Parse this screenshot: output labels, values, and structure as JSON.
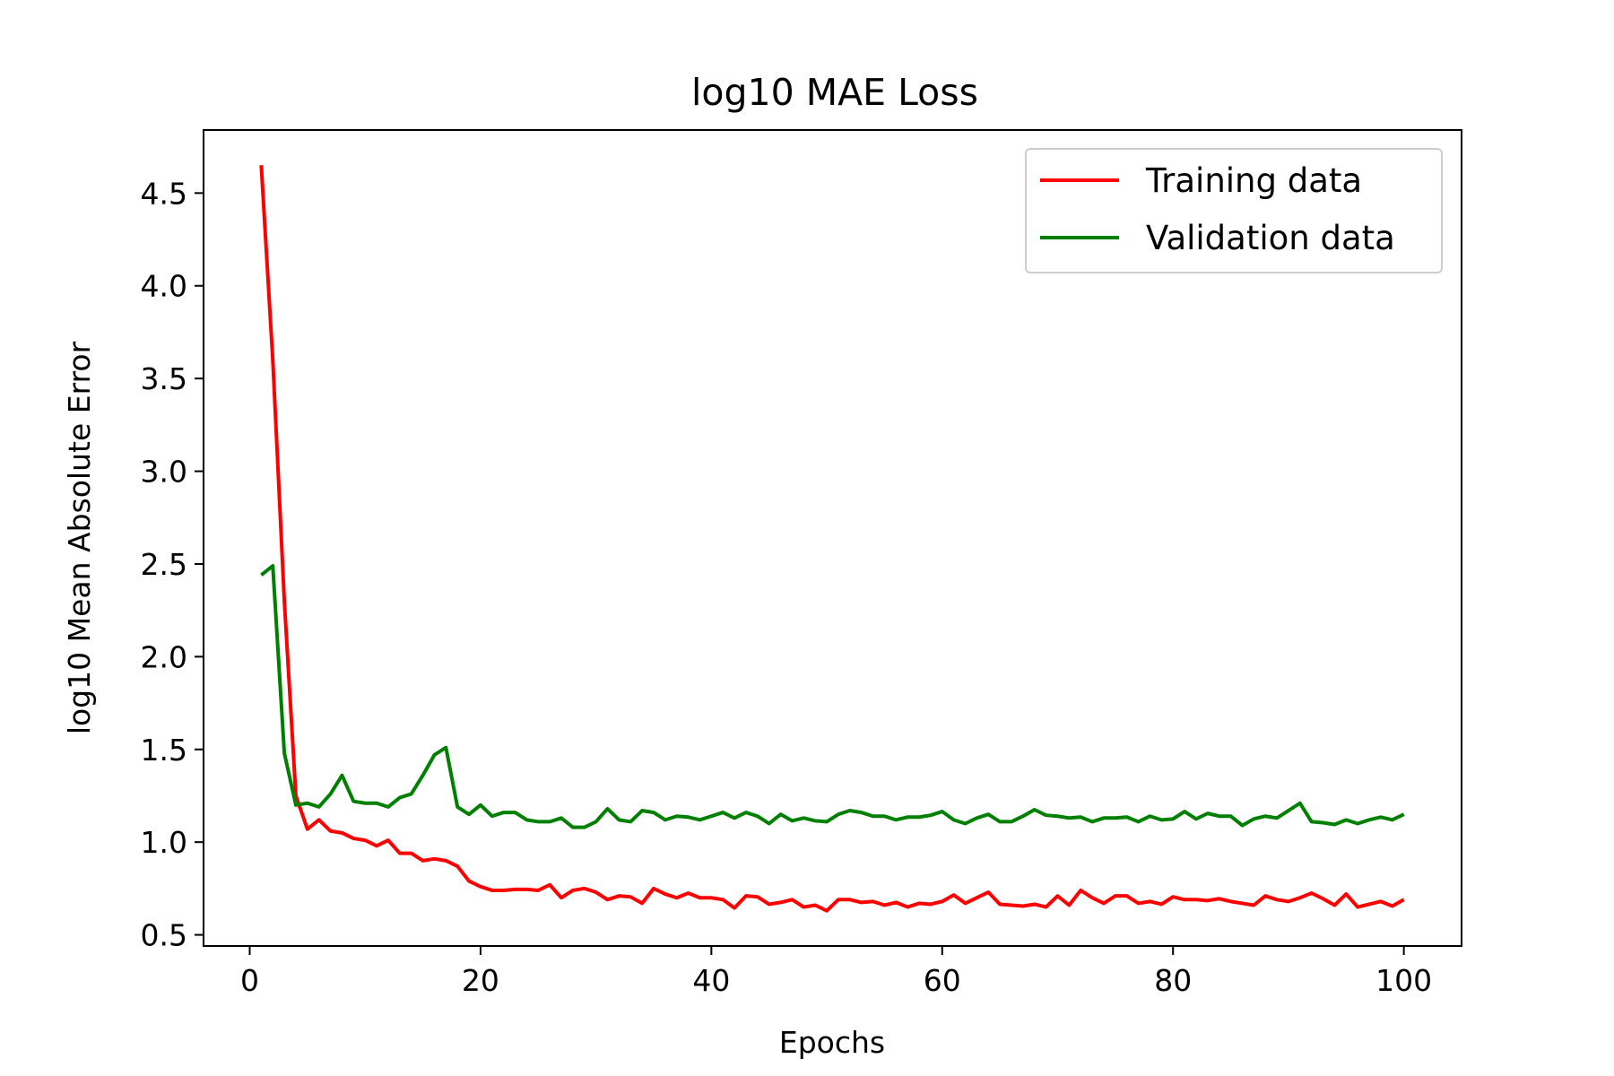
{
  "chart_data": {
    "type": "line",
    "title": "log10 MAE Loss",
    "xlabel": "Epochs",
    "ylabel": "log10 Mean Absolute Error",
    "xlim": [
      -4,
      105
    ],
    "ylim": [
      0.44,
      4.84
    ],
    "xticks": [
      0,
      20,
      40,
      60,
      80,
      100
    ],
    "xtick_labels": [
      "0",
      "20",
      "40",
      "60",
      "80",
      "100"
    ],
    "yticks": [
      0.5,
      1.0,
      1.5,
      2.0,
      2.5,
      3.0,
      3.5,
      4.0,
      4.5
    ],
    "ytick_labels": [
      "0.5",
      "1.0",
      "1.5",
      "2.0",
      "2.5",
      "3.0",
      "3.5",
      "4.0",
      "4.5"
    ],
    "grid": false,
    "legend_position": "top-right",
    "x": [
      1,
      2,
      3,
      4,
      5,
      6,
      7,
      8,
      9,
      10,
      11,
      12,
      13,
      14,
      15,
      16,
      17,
      18,
      19,
      20,
      21,
      22,
      23,
      24,
      25,
      26,
      27,
      28,
      29,
      30,
      31,
      32,
      33,
      34,
      35,
      36,
      37,
      38,
      39,
      40,
      41,
      42,
      43,
      44,
      45,
      46,
      47,
      48,
      49,
      50,
      51,
      52,
      53,
      54,
      55,
      56,
      57,
      58,
      59,
      60,
      61,
      62,
      63,
      64,
      65,
      66,
      67,
      68,
      69,
      70,
      71,
      72,
      73,
      74,
      75,
      76,
      77,
      78,
      79,
      80,
      81,
      82,
      83,
      84,
      85,
      86,
      87,
      88,
      89,
      90,
      91,
      92,
      93,
      94,
      95,
      96,
      97,
      98,
      99,
      100
    ],
    "series": [
      {
        "name": "Training data",
        "color": "#ff0000",
        "values": [
          4.65,
          3.6,
          2.3,
          1.25,
          1.07,
          1.12,
          1.06,
          1.05,
          1.02,
          1.01,
          0.98,
          1.01,
          0.94,
          0.94,
          0.9,
          0.91,
          0.9,
          0.87,
          0.79,
          0.76,
          0.74,
          0.74,
          0.745,
          0.745,
          0.74,
          0.77,
          0.7,
          0.74,
          0.75,
          0.73,
          0.69,
          0.71,
          0.705,
          0.67,
          0.75,
          0.72,
          0.7,
          0.725,
          0.7,
          0.7,
          0.69,
          0.645,
          0.71,
          0.705,
          0.665,
          0.675,
          0.69,
          0.65,
          0.66,
          0.63,
          0.69,
          0.69,
          0.675,
          0.68,
          0.66,
          0.675,
          0.65,
          0.67,
          0.665,
          0.68,
          0.715,
          0.67,
          0.7,
          0.73,
          0.665,
          0.66,
          0.655,
          0.665,
          0.65,
          0.71,
          0.66,
          0.74,
          0.7,
          0.67,
          0.71,
          0.71,
          0.67,
          0.68,
          0.665,
          0.705,
          0.69,
          0.69,
          0.685,
          0.695,
          0.68,
          0.67,
          0.66,
          0.71,
          0.69,
          0.68,
          0.7,
          0.725,
          0.695,
          0.66,
          0.72,
          0.65,
          0.665,
          0.68,
          0.655,
          0.69
        ]
      },
      {
        "name": "Validation data",
        "color": "#008000",
        "values": [
          2.44,
          2.49,
          1.48,
          1.2,
          1.21,
          1.19,
          1.26,
          1.36,
          1.22,
          1.21,
          1.21,
          1.19,
          1.24,
          1.26,
          1.36,
          1.47,
          1.51,
          1.19,
          1.15,
          1.2,
          1.14,
          1.16,
          1.16,
          1.12,
          1.11,
          1.11,
          1.13,
          1.08,
          1.08,
          1.11,
          1.18,
          1.12,
          1.11,
          1.17,
          1.16,
          1.12,
          1.14,
          1.135,
          1.12,
          1.14,
          1.16,
          1.13,
          1.16,
          1.14,
          1.1,
          1.15,
          1.115,
          1.13,
          1.115,
          1.11,
          1.15,
          1.17,
          1.16,
          1.14,
          1.14,
          1.12,
          1.135,
          1.135,
          1.145,
          1.165,
          1.12,
          1.1,
          1.13,
          1.15,
          1.11,
          1.11,
          1.14,
          1.175,
          1.145,
          1.14,
          1.13,
          1.135,
          1.11,
          1.13,
          1.13,
          1.135,
          1.11,
          1.14,
          1.12,
          1.125,
          1.165,
          1.125,
          1.155,
          1.14,
          1.14,
          1.09,
          1.125,
          1.14,
          1.13,
          1.17,
          1.21,
          1.11,
          1.105,
          1.095,
          1.12,
          1.1,
          1.12,
          1.135,
          1.12,
          1.15
        ]
      }
    ]
  }
}
